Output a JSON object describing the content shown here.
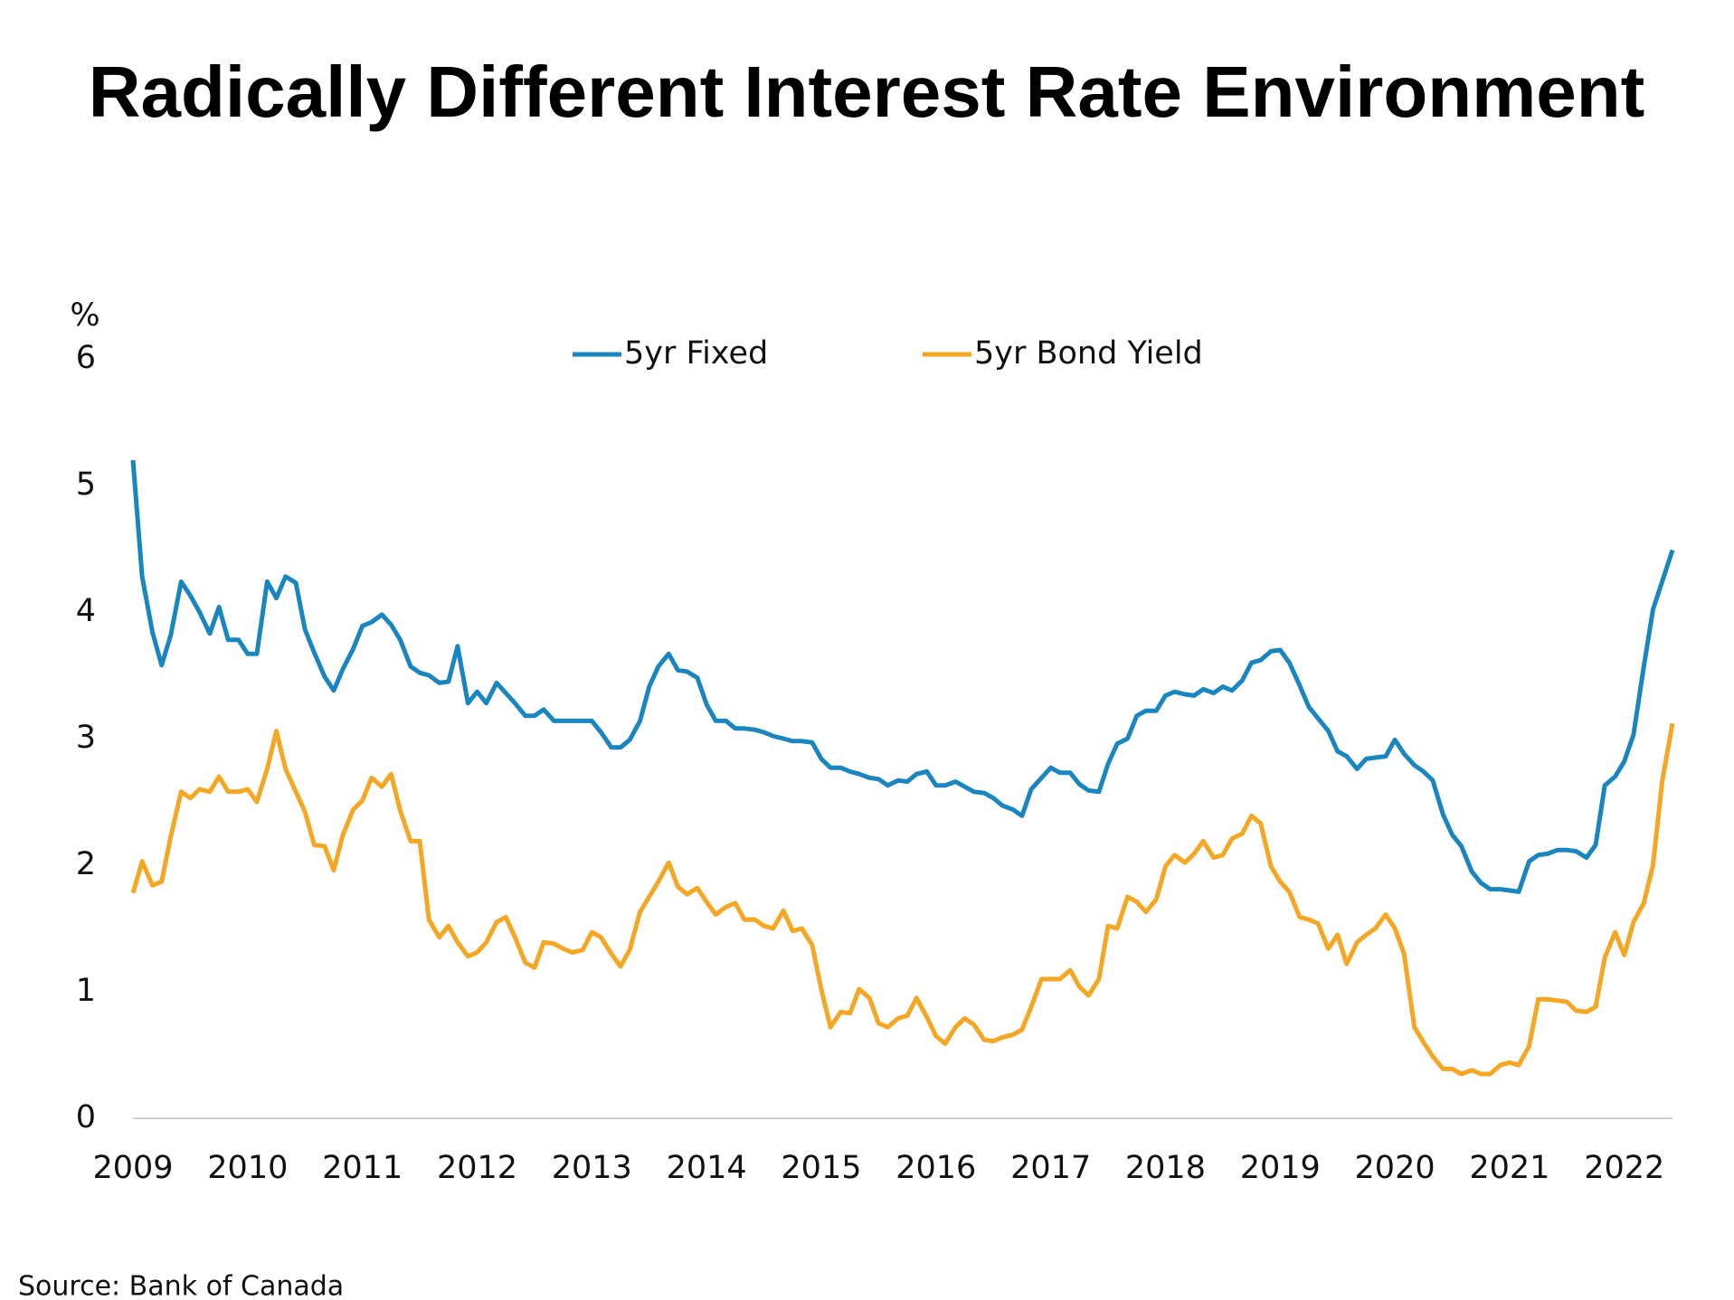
{
  "chart_data": {
    "type": "line",
    "title": "Radically Different Interest Rate Environment",
    "ylabel": "%",
    "source": "Source: Bank of Canada",
    "legend": "top",
    "grid": false,
    "xlim": [
      2009,
      2022.42
    ],
    "xticks": [
      2009,
      2010,
      2011,
      2012,
      2013,
      2014,
      2015,
      2016,
      2017,
      2018,
      2019,
      2020,
      2021,
      2022
    ],
    "ylim": [
      0,
      6
    ],
    "yticks": [
      0,
      1,
      2,
      3,
      4,
      5,
      6
    ],
    "x": [
      2009,
      2009.08,
      2009.17,
      2009.25,
      2009.33,
      2009.42,
      2009.5,
      2009.58,
      2009.67,
      2009.75,
      2009.83,
      2009.92,
      2010,
      2010.08,
      2010.17,
      2010.25,
      2010.33,
      2010.42,
      2010.5,
      2010.58,
      2010.67,
      2010.75,
      2010.83,
      2010.92,
      2011,
      2011.08,
      2011.17,
      2011.25,
      2011.33,
      2011.42,
      2011.5,
      2011.58,
      2011.67,
      2011.75,
      2011.83,
      2011.92,
      2012,
      2012.08,
      2012.17,
      2012.25,
      2012.33,
      2012.42,
      2012.5,
      2012.58,
      2012.67,
      2012.75,
      2012.83,
      2012.92,
      2013,
      2013.08,
      2013.17,
      2013.25,
      2013.33,
      2013.42,
      2013.5,
      2013.58,
      2013.67,
      2013.75,
      2013.83,
      2013.92,
      2014,
      2014.08,
      2014.17,
      2014.25,
      2014.33,
      2014.42,
      2014.5,
      2014.58,
      2014.67,
      2014.75,
      2014.83,
      2014.92,
      2015,
      2015.08,
      2015.17,
      2015.25,
      2015.33,
      2015.42,
      2015.5,
      2015.58,
      2015.67,
      2015.75,
      2015.83,
      2015.92,
      2016,
      2016.08,
      2016.17,
      2016.25,
      2016.33,
      2016.42,
      2016.5,
      2016.58,
      2016.67,
      2016.75,
      2016.83,
      2016.92,
      2017,
      2017.08,
      2017.17,
      2017.25,
      2017.33,
      2017.42,
      2017.5,
      2017.58,
      2017.67,
      2017.75,
      2017.83,
      2017.92,
      2018,
      2018.08,
      2018.17,
      2018.25,
      2018.33,
      2018.42,
      2018.5,
      2018.58,
      2018.67,
      2018.75,
      2018.83,
      2018.92,
      2019,
      2019.08,
      2019.17,
      2019.25,
      2019.33,
      2019.42,
      2019.5,
      2019.58,
      2019.67,
      2019.75,
      2019.83,
      2019.92,
      2020,
      2020.08,
      2020.17,
      2020.25,
      2020.33,
      2020.42,
      2020.5,
      2020.58,
      2020.67,
      2020.75,
      2020.83,
      2020.92,
      2021,
      2021.08,
      2021.17,
      2021.25,
      2021.33,
      2021.42,
      2021.5,
      2021.58,
      2021.67,
      2021.75,
      2021.83,
      2021.92,
      2022,
      2022.08,
      2022.17,
      2022.25,
      2022.33,
      2022.42
    ],
    "series": [
      {
        "name": "5yr Fixed",
        "color": "#1a86c0",
        "values": [
          5.2,
          4.28,
          3.84,
          3.58,
          3.82,
          4.24,
          4.13,
          4.0,
          3.83,
          4.04,
          3.78,
          3.78,
          3.67,
          3.67,
          4.24,
          4.11,
          4.28,
          4.23,
          3.86,
          3.68,
          3.49,
          3.38,
          3.55,
          3.71,
          3.89,
          3.92,
          3.98,
          3.9,
          3.78,
          3.57,
          3.52,
          3.5,
          3.44,
          3.45,
          3.73,
          3.28,
          3.37,
          3.28,
          3.44,
          3.36,
          3.28,
          3.18,
          3.18,
          3.23,
          3.14,
          3.14,
          3.14,
          3.14,
          3.14,
          3.05,
          2.93,
          2.93,
          2.99,
          3.14,
          3.41,
          3.57,
          3.67,
          3.54,
          3.53,
          3.48,
          3.27,
          3.14,
          3.14,
          3.08,
          3.08,
          3.07,
          3.05,
          3.02,
          3.0,
          2.98,
          2.98,
          2.97,
          2.84,
          2.77,
          2.77,
          2.74,
          2.72,
          2.69,
          2.68,
          2.63,
          2.67,
          2.66,
          2.72,
          2.74,
          2.63,
          2.63,
          2.66,
          2.62,
          2.58,
          2.57,
          2.53,
          2.47,
          2.44,
          2.39,
          2.6,
          2.69,
          2.77,
          2.73,
          2.73,
          2.64,
          2.59,
          2.58,
          2.8,
          2.96,
          3.0,
          3.18,
          3.22,
          3.22,
          3.34,
          3.37,
          3.35,
          3.34,
          3.39,
          3.36,
          3.41,
          3.38,
          3.46,
          3.6,
          3.62,
          3.69,
          3.7,
          3.6,
          3.42,
          3.25,
          3.16,
          3.06,
          2.9,
          2.86,
          2.76,
          2.84,
          2.85,
          2.86,
          2.99,
          2.88,
          2.79,
          2.74,
          2.67,
          2.4,
          2.24,
          2.15,
          1.95,
          1.86,
          1.81,
          1.81,
          1.8,
          1.79,
          2.03,
          2.08,
          2.09,
          2.12,
          2.12,
          2.11,
          2.06,
          2.16,
          2.63,
          2.7,
          2.82,
          3.03,
          3.57,
          4.02,
          4.24,
          4.49
        ]
      },
      {
        "name": "5yr Bond Yield",
        "color": "#f5a623",
        "values": [
          1.78,
          2.03,
          1.84,
          1.87,
          2.23,
          2.58,
          2.53,
          2.6,
          2.58,
          2.7,
          2.58,
          2.58,
          2.6,
          2.5,
          2.76,
          3.06,
          2.76,
          2.58,
          2.42,
          2.16,
          2.15,
          1.96,
          2.24,
          2.44,
          2.51,
          2.69,
          2.62,
          2.72,
          2.43,
          2.19,
          2.19,
          1.57,
          1.43,
          1.52,
          1.39,
          1.28,
          1.31,
          1.39,
          1.55,
          1.59,
          1.43,
          1.23,
          1.19,
          1.39,
          1.38,
          1.34,
          1.31,
          1.33,
          1.47,
          1.43,
          1.3,
          1.2,
          1.33,
          1.63,
          1.75,
          1.87,
          2.02,
          1.83,
          1.77,
          1.82,
          1.71,
          1.61,
          1.67,
          1.7,
          1.57,
          1.57,
          1.52,
          1.5,
          1.64,
          1.48,
          1.5,
          1.37,
          1.02,
          0.72,
          0.84,
          0.83,
          1.02,
          0.95,
          0.75,
          0.72,
          0.79,
          0.81,
          0.95,
          0.8,
          0.65,
          0.59,
          0.72,
          0.79,
          0.74,
          0.62,
          0.61,
          0.64,
          0.66,
          0.7,
          0.88,
          1.1,
          1.1,
          1.1,
          1.17,
          1.04,
          0.97,
          1.1,
          1.52,
          1.5,
          1.75,
          1.71,
          1.63,
          1.73,
          1.99,
          2.08,
          2.02,
          2.09,
          2.19,
          2.06,
          2.08,
          2.21,
          2.25,
          2.39,
          2.33,
          1.99,
          1.87,
          1.79,
          1.59,
          1.57,
          1.54,
          1.34,
          1.45,
          1.22,
          1.39,
          1.45,
          1.5,
          1.61,
          1.5,
          1.3,
          0.72,
          0.6,
          0.49,
          0.39,
          0.39,
          0.35,
          0.38,
          0.35,
          0.35,
          0.42,
          0.44,
          0.42,
          0.57,
          0.94,
          0.94,
          0.93,
          0.92,
          0.85,
          0.84,
          0.88,
          1.27,
          1.47,
          1.29,
          1.55,
          1.7,
          2.0,
          2.66,
          3.12
        ]
      }
    ]
  }
}
